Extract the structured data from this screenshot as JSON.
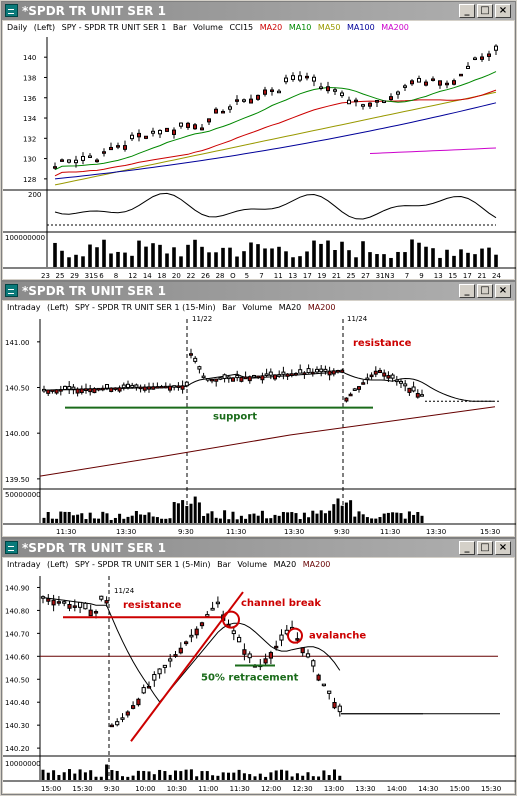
{
  "colors": {
    "ma20": "#cc0000",
    "ma10": "#008800",
    "ma50": "#999900",
    "ma100": "#000099",
    "ma200": "#cc00cc",
    "ma20_intra": "#660000",
    "up": "#ffffff",
    "down": "#aa1111",
    "annot_red": "#cc0000",
    "annot_green": "#1a6b1a"
  },
  "window_controls": {
    "min": "_",
    "max": "□",
    "close": "×"
  },
  "icons": {
    "window": "chart-window-icon"
  },
  "panel1": {
    "title": "*SPDR TR UNIT SER 1",
    "legend": {
      "period": "Daily",
      "axis": "(Left)",
      "symbol": "SPY - SPDR TR UNIT SER 1",
      "type": "Bar",
      "vol": "Volume",
      "cci": "CCI15",
      "ma20": "MA20",
      "ma10": "MA10",
      "ma50": "MA50",
      "ma100": "MA100",
      "ma200": "MA200"
    },
    "y_ticks": [
      "140",
      "138",
      "136",
      "134",
      "132",
      "130",
      "128"
    ],
    "cci_tick": "200",
    "vol_label": "100000000",
    "x_ticks": [
      "23",
      "25",
      "29",
      "31S",
      "6",
      "8",
      "12",
      "14",
      "18",
      "20",
      "22",
      "26",
      "28",
      "O",
      "5",
      "7",
      "11",
      "13",
      "17",
      "19",
      "21",
      "25",
      "27",
      "31N",
      "3",
      "7",
      "9",
      "13",
      "15",
      "17",
      "21",
      "24"
    ]
  },
  "panel2": {
    "title": "*SPDR TR UNIT SER 1",
    "legend": {
      "period": "Intraday",
      "axis": "(Left)",
      "symbol": "SPY - SPDR TR UNIT SER 1 (15-Min)",
      "type": "Bar",
      "vol": "Volume",
      "ma20": "MA20",
      "ma200": "MA200"
    },
    "y_ticks": [
      "141.00",
      "140.50",
      "140.00",
      "139.50"
    ],
    "vol_label": "50000000",
    "date_marks": [
      "11/22",
      "11/24"
    ],
    "x_ticks": [
      "11:30",
      "13:30",
      "9:30",
      "11:30",
      "13:30",
      "9:30",
      "11:30",
      "13:30",
      "15:30"
    ],
    "annotations": {
      "resistance": "resistance",
      "support": "support"
    }
  },
  "panel3": {
    "title": "*SPDR TR UNIT SER 1",
    "legend": {
      "period": "Intraday",
      "axis": "(Left)",
      "symbol": "SPY - SPDR TR UNIT SER 1 (5-Min)",
      "type": "Bar",
      "vol": "Volume",
      "ma20": "MA20",
      "ma200": "MA200"
    },
    "y_ticks": [
      "140.90",
      "140.80",
      "140.70",
      "140.60",
      "140.50",
      "140.40",
      "140.30",
      "140.20"
    ],
    "vol_label": "10000000",
    "date_mark": "11/24",
    "x_ticks": [
      "15:00",
      "15:30",
      "9:30",
      "10:00",
      "10:30",
      "11:00",
      "11:30",
      "12:00",
      "12:30",
      "13:00",
      "13:30",
      "14:00",
      "14:30",
      "15:00",
      "15:30"
    ],
    "annotations": {
      "resistance": "resistance",
      "channel_break": "channel break",
      "avalanche": "avalanche",
      "retracement": "50% retracement"
    }
  }
}
